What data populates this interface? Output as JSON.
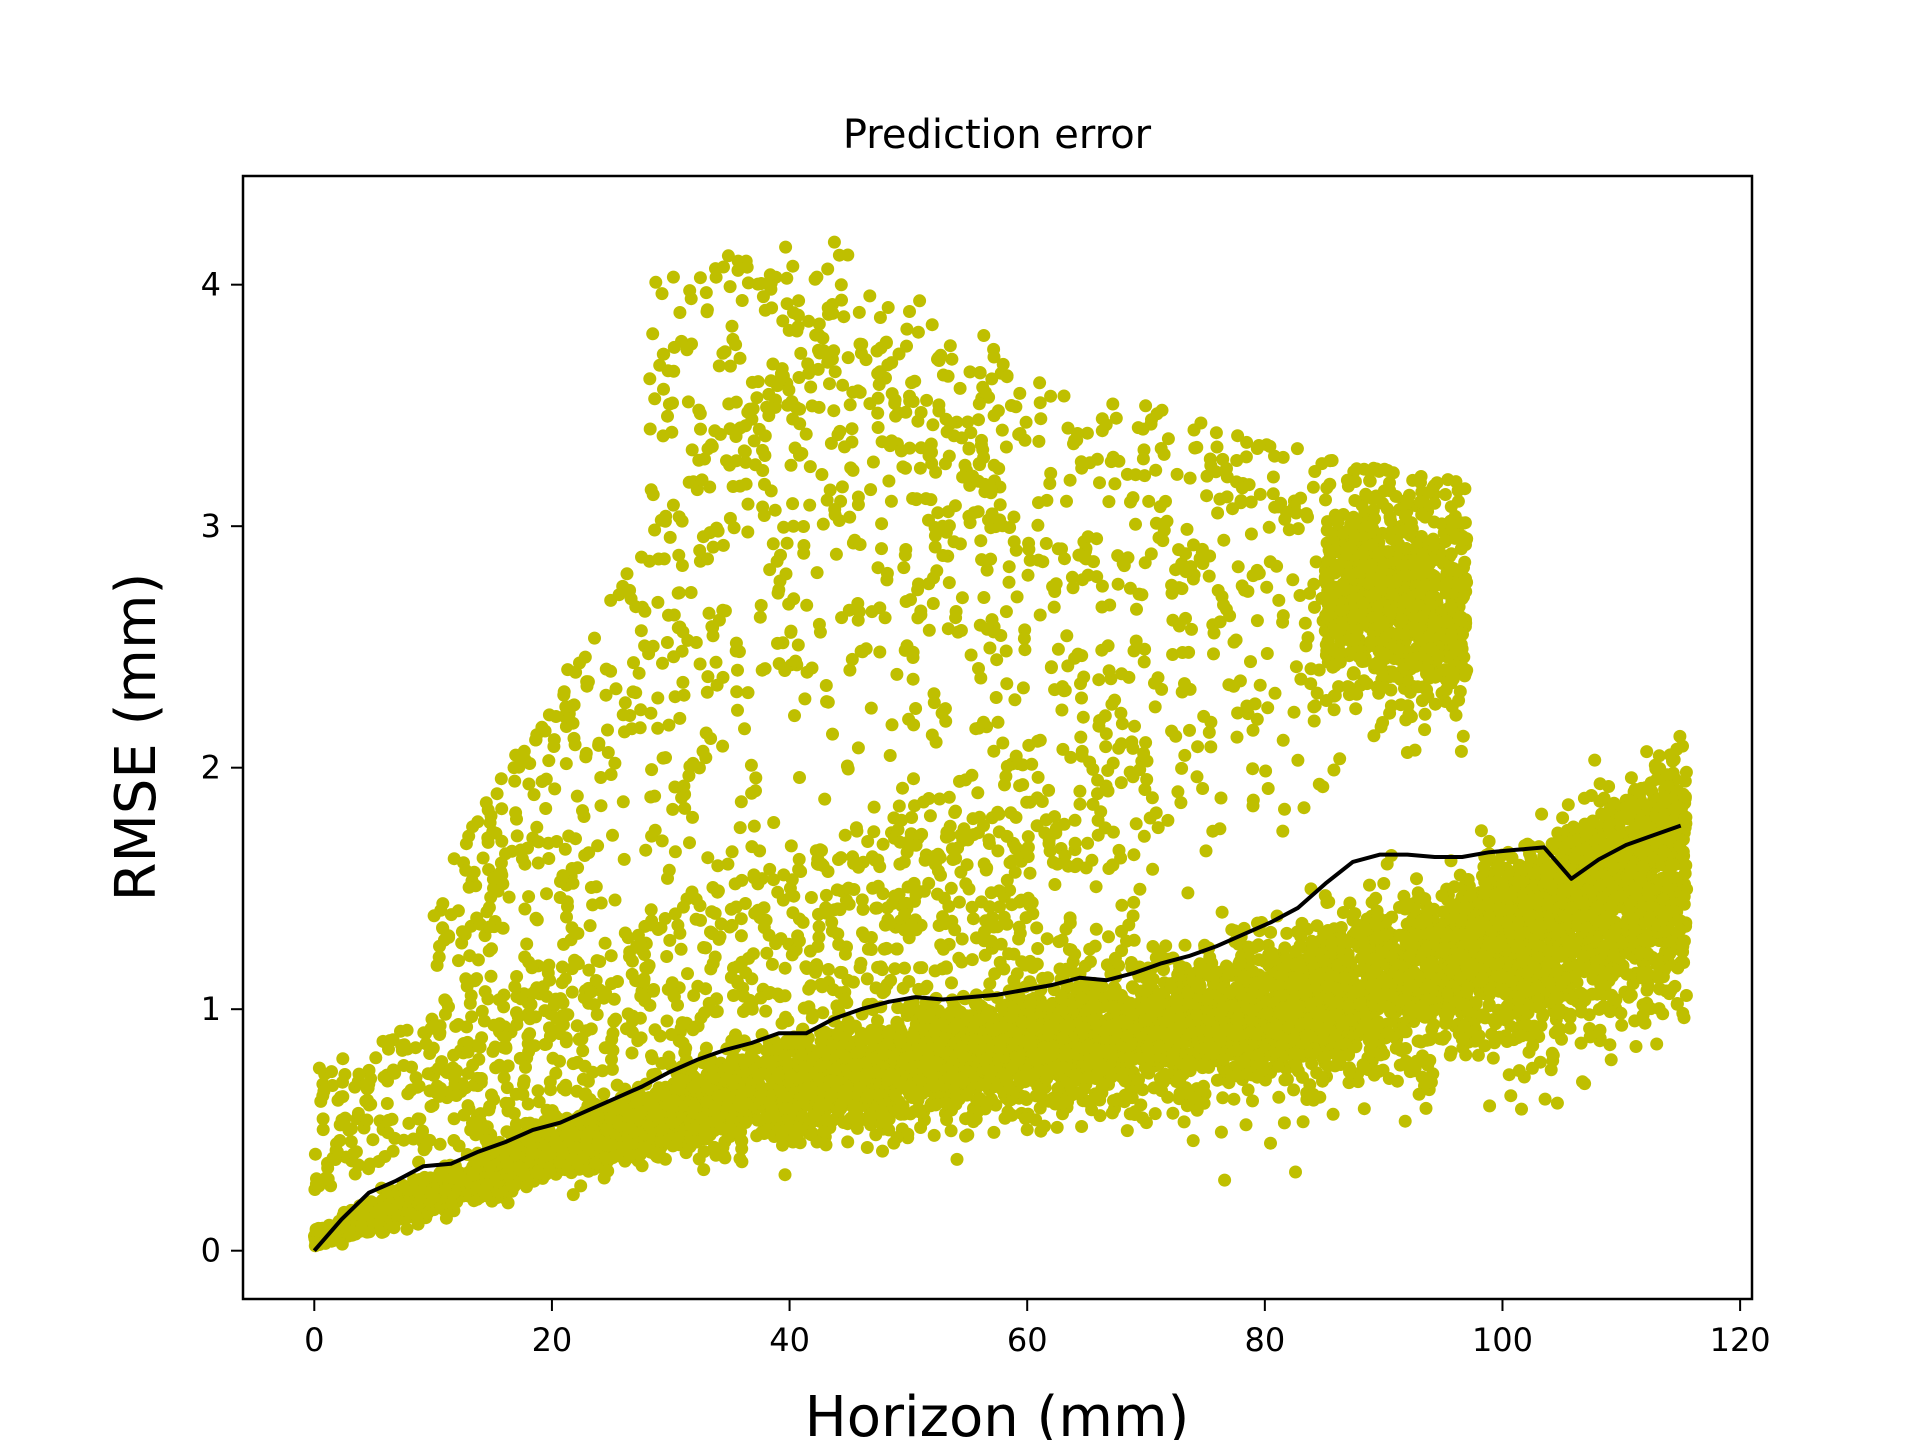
{
  "chart_data": {
    "type": "scatter",
    "title": "Prediction error",
    "xlabel": "Horizon (mm)",
    "ylabel": "RMSE (mm)",
    "xlim": [
      -6,
      121
    ],
    "ylim": [
      -0.2,
      4.45
    ],
    "xticks": [
      0,
      20,
      40,
      60,
      80,
      100,
      120
    ],
    "yticks": [
      0,
      1,
      2,
      3,
      4
    ],
    "grid": false,
    "legend": "none",
    "colors": {
      "scatter": "#bfbf00",
      "line": "#000000"
    },
    "series": [
      {
        "type": "line",
        "x": [
          0,
          2.3,
          4.6,
          6.9,
          9.2,
          11.5,
          13.8,
          16.1,
          18.4,
          20.7,
          23.0,
          25.3,
          27.6,
          29.9,
          32.2,
          34.5,
          36.8,
          39.1,
          41.4,
          43.7,
          46.0,
          48.3,
          50.6,
          52.9,
          55.2,
          57.5,
          59.8,
          62.1,
          64.4,
          66.7,
          69.0,
          71.3,
          73.6,
          75.9,
          78.2,
          80.5,
          82.8,
          85.1,
          87.4,
          89.7,
          92.0,
          94.3,
          96.6,
          98.9,
          101.2,
          103.5,
          105.8,
          108.1,
          110.4,
          112.7,
          115.0
        ],
        "y": [
          0.0,
          0.13,
          0.24,
          0.29,
          0.35,
          0.36,
          0.41,
          0.45,
          0.5,
          0.53,
          0.58,
          0.63,
          0.68,
          0.74,
          0.79,
          0.83,
          0.86,
          0.9,
          0.9,
          0.96,
          1.0,
          1.03,
          1.05,
          1.04,
          1.05,
          1.06,
          1.08,
          1.1,
          1.13,
          1.12,
          1.15,
          1.19,
          1.22,
          1.26,
          1.31,
          1.36,
          1.42,
          1.52,
          1.61,
          1.64,
          1.64,
          1.63,
          1.63,
          1.65,
          1.66,
          1.67,
          1.54,
          1.62,
          1.68,
          1.72,
          1.76
        ]
      }
    ]
  }
}
